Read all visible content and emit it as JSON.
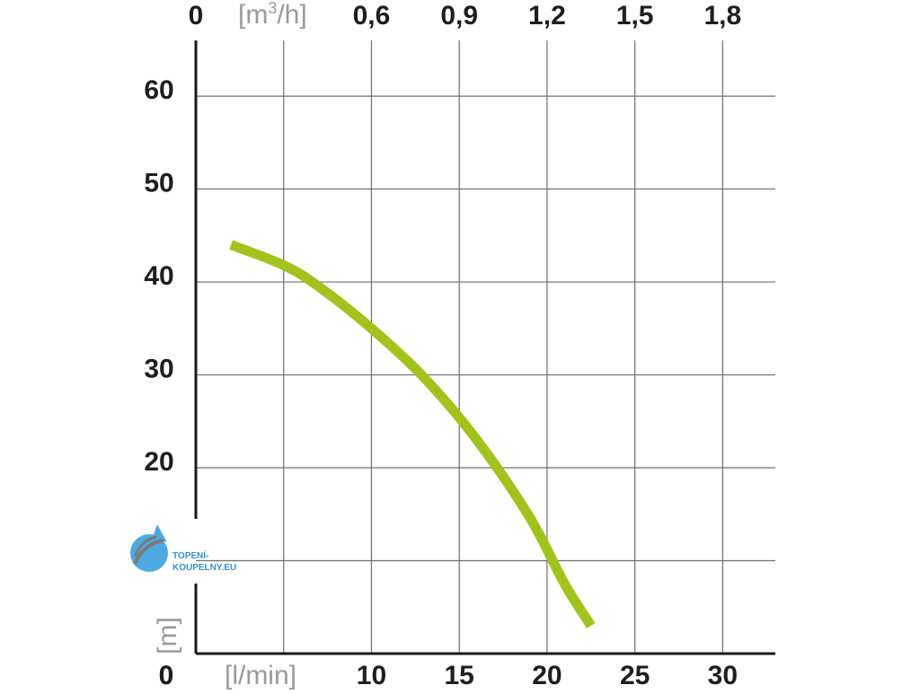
{
  "chart_data": {
    "type": "line",
    "title": "",
    "x": [
      2,
      5,
      7,
      10,
      13,
      16,
      19,
      21,
      22.5
    ],
    "series": [
      {
        "values": [
          44,
          41.8,
          39.5,
          35,
          29.7,
          23,
          14.7,
          7.5,
          3
        ]
      }
    ],
    "xlabel": "[l/min]",
    "ylabel": "[m]",
    "x_ticks": [
      "0",
      "10",
      "15",
      "20",
      "25",
      "30"
    ],
    "y_ticks": [
      "0",
      "20",
      "30",
      "40",
      "50",
      "60"
    ],
    "top_axis_label_prefix": "[m",
    "top_axis_label_sup": "3",
    "top_axis_label_suffix": "/h]",
    "top_ticks": [
      "0",
      "0,6",
      "0,9",
      "1,2",
      "1,5",
      "1,8"
    ],
    "xlim": [
      0,
      33
    ],
    "ylim": [
      0,
      66
    ],
    "grid": true,
    "line_color": "#a4c21e"
  },
  "watermark": {
    "line1": "TOPENÍ-",
    "line2": "KOUPELNY.EU"
  }
}
